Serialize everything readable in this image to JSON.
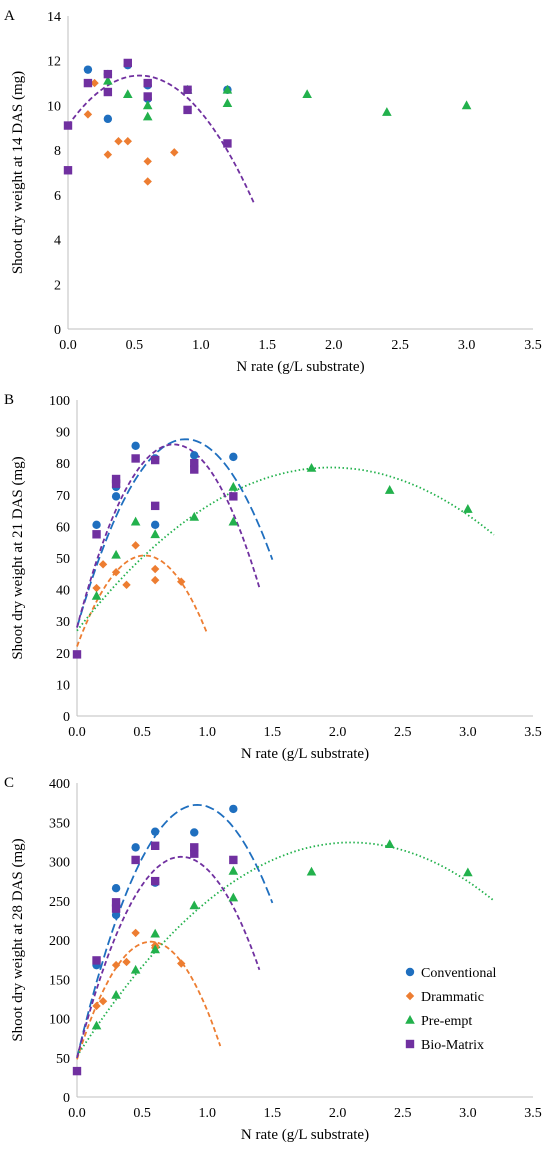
{
  "colors": {
    "Conventional": "#1f6fbf",
    "Drammatic": "#ed7d31",
    "Pre-empt": "#22b14c",
    "Bio-Matrix": "#7030a0",
    "axis": "#bfbfbf",
    "text": "#000000"
  },
  "chart_data": [
    {
      "panel": "A",
      "type": "scatter",
      "xlabel": "N rate (g/L substrate)",
      "ylabel": "Shoot dry weight at 14 DAS (mg)",
      "xlim": [
        0,
        3.5
      ],
      "ylim": [
        0,
        14
      ],
      "xticks": [
        "0.0",
        "0.5",
        "1.0",
        "1.5",
        "2.0",
        "2.5",
        "3.0",
        "3.5"
      ],
      "yticks": [
        "0",
        "2",
        "4",
        "6",
        "8",
        "10",
        "12",
        "14"
      ],
      "series": [
        {
          "name": "Conventional",
          "marker": "circle",
          "points": [
            [
              0.15,
              11.6
            ],
            [
              0.3,
              11.4
            ],
            [
              0.3,
              9.4
            ],
            [
              0.45,
              11.8
            ],
            [
              0.6,
              10.9
            ],
            [
              0.6,
              10.3
            ],
            [
              0.9,
              10.7
            ],
            [
              1.2,
              10.7
            ]
          ]
        },
        {
          "name": "Drammatic",
          "marker": "diamond",
          "points": [
            [
              0.15,
              9.6
            ],
            [
              0.2,
              11.0
            ],
            [
              0.3,
              7.8
            ],
            [
              0.38,
              8.4
            ],
            [
              0.45,
              8.4
            ],
            [
              0.6,
              7.5
            ],
            [
              0.6,
              6.6
            ],
            [
              0.8,
              7.9
            ]
          ]
        },
        {
          "name": "Pre-empt",
          "marker": "triangle",
          "points": [
            [
              0.3,
              11.1
            ],
            [
              0.45,
              10.5
            ],
            [
              0.6,
              10.0
            ],
            [
              0.6,
              9.5
            ],
            [
              0.9,
              10.7
            ],
            [
              1.2,
              10.1
            ],
            [
              1.2,
              10.7
            ],
            [
              1.8,
              10.5
            ],
            [
              2.4,
              9.7
            ],
            [
              3.0,
              10.0
            ]
          ]
        },
        {
          "name": "Bio-Matrix",
          "marker": "square",
          "points": [
            [
              0.0,
              9.1
            ],
            [
              0.0,
              7.1
            ],
            [
              0.15,
              11.0
            ],
            [
              0.3,
              11.4
            ],
            [
              0.3,
              10.6
            ],
            [
              0.45,
              11.9
            ],
            [
              0.6,
              11.0
            ],
            [
              0.6,
              10.4
            ],
            [
              0.9,
              9.8
            ],
            [
              0.9,
              10.7
            ],
            [
              1.2,
              8.3
            ]
          ]
        }
      ],
      "trendlines": [
        {
          "series": "Bio-Matrix",
          "style": "dashed",
          "coef": [
            9.1,
            8.3,
            -7.7
          ],
          "xrange": [
            0,
            1.4
          ]
        }
      ]
    },
    {
      "panel": "B",
      "type": "scatter",
      "xlabel": "N rate (g/L substrate)",
      "ylabel": "Shoot dry weight at 21 DAS (mg)",
      "xlim": [
        0,
        3.5
      ],
      "ylim": [
        0,
        100
      ],
      "xticks": [
        "0.0",
        "0.5",
        "1.0",
        "1.5",
        "2.0",
        "2.5",
        "3.0",
        "3.5"
      ],
      "yticks": [
        "0",
        "10",
        "20",
        "30",
        "40",
        "50",
        "60",
        "70",
        "80",
        "90",
        "100"
      ],
      "series": [
        {
          "name": "Conventional",
          "marker": "circle",
          "points": [
            [
              0.15,
              60.5
            ],
            [
              0.3,
              72.5
            ],
            [
              0.3,
              69.5
            ],
            [
              0.45,
              85.5
            ],
            [
              0.6,
              60.5
            ],
            [
              0.6,
              81.5
            ],
            [
              0.9,
              82.5
            ],
            [
              1.2,
              82.0
            ]
          ]
        },
        {
          "name": "Drammatic",
          "marker": "diamond",
          "points": [
            [
              0.15,
              40.5
            ],
            [
              0.2,
              48.0
            ],
            [
              0.3,
              45.5
            ],
            [
              0.38,
              41.5
            ],
            [
              0.45,
              54.0
            ],
            [
              0.6,
              46.5
            ],
            [
              0.6,
              43.0
            ],
            [
              0.8,
              42.5
            ]
          ]
        },
        {
          "name": "Pre-empt",
          "marker": "triangle",
          "points": [
            [
              0.15,
              38.0
            ],
            [
              0.3,
              51.0
            ],
            [
              0.45,
              61.5
            ],
            [
              0.6,
              57.5
            ],
            [
              0.9,
              63.0
            ],
            [
              1.2,
              61.5
            ],
            [
              1.2,
              72.5
            ],
            [
              1.8,
              78.5
            ],
            [
              2.4,
              71.5
            ],
            [
              3.0,
              65.5
            ]
          ]
        },
        {
          "name": "Bio-Matrix",
          "marker": "square",
          "points": [
            [
              0.0,
              19.5
            ],
            [
              0.15,
              57.5
            ],
            [
              0.3,
              75.0
            ],
            [
              0.3,
              73.5
            ],
            [
              0.45,
              81.5
            ],
            [
              0.6,
              81.0
            ],
            [
              0.6,
              66.5
            ],
            [
              0.9,
              80.0
            ],
            [
              0.9,
              78.0
            ],
            [
              1.2,
              69.5
            ]
          ]
        }
      ],
      "trendlines": [
        {
          "series": "Conventional",
          "style": "longdash",
          "coef": [
            28.0,
            143.0,
            -85.8
          ],
          "xrange": [
            0,
            1.5
          ]
        },
        {
          "series": "Drammatic",
          "style": "dashed",
          "coef": [
            22.0,
            111.0,
            -107.0
          ],
          "xrange": [
            0,
            1.0
          ]
        },
        {
          "series": "Pre-empt",
          "style": "dotted",
          "coef": [
            27.0,
            53.0,
            -13.6
          ],
          "xrange": [
            0,
            3.2
          ]
        },
        {
          "series": "Bio-Matrix",
          "style": "dashed",
          "coef": [
            28.0,
            156.0,
            -105.0
          ],
          "xrange": [
            0,
            1.4
          ]
        }
      ]
    },
    {
      "panel": "C",
      "type": "scatter",
      "xlabel": "N rate (g/L substrate)",
      "ylabel": "Shoot dry weight at 28 DAS (mg)",
      "xlim": [
        0,
        3.5
      ],
      "ylim": [
        0,
        400
      ],
      "xticks": [
        "0.0",
        "0.5",
        "1.0",
        "1.5",
        "2.0",
        "2.5",
        "3.0",
        "3.5"
      ],
      "yticks": [
        "0",
        "50",
        "100",
        "150",
        "200",
        "250",
        "300",
        "350",
        "400"
      ],
      "legend": {
        "placement": "right",
        "entries": [
          "Conventional",
          "Drammatic",
          "Pre-empt",
          "Bio-Matrix"
        ]
      },
      "series": [
        {
          "name": "Conventional",
          "marker": "circle",
          "points": [
            [
              0.15,
              168
            ],
            [
              0.3,
              266
            ],
            [
              0.3,
              232
            ],
            [
              0.45,
              318
            ],
            [
              0.6,
              338
            ],
            [
              0.6,
              273
            ],
            [
              0.9,
              337
            ],
            [
              1.2,
              367
            ]
          ]
        },
        {
          "name": "Drammatic",
          "marker": "diamond",
          "points": [
            [
              0.15,
              116
            ],
            [
              0.2,
              122
            ],
            [
              0.3,
              168
            ],
            [
              0.38,
              172
            ],
            [
              0.45,
              209
            ],
            [
              0.6,
              193
            ],
            [
              0.6,
              190
            ],
            [
              0.8,
              170
            ]
          ]
        },
        {
          "name": "Pre-empt",
          "marker": "triangle",
          "points": [
            [
              0.15,
              91
            ],
            [
              0.3,
              130
            ],
            [
              0.45,
              162
            ],
            [
              0.6,
              208
            ],
            [
              0.6,
              188
            ],
            [
              0.9,
              244
            ],
            [
              1.2,
              254
            ],
            [
              1.2,
              288
            ],
            [
              1.8,
              287
            ],
            [
              2.4,
              322
            ],
            [
              3.0,
              286
            ]
          ]
        },
        {
          "name": "Bio-Matrix",
          "marker": "square",
          "points": [
            [
              0.0,
              33
            ],
            [
              0.15,
              174
            ],
            [
              0.3,
              248
            ],
            [
              0.3,
              240
            ],
            [
              0.45,
              302
            ],
            [
              0.6,
              320
            ],
            [
              0.6,
              275
            ],
            [
              0.9,
              318
            ],
            [
              0.9,
              310
            ],
            [
              1.2,
              302
            ]
          ]
        }
      ],
      "trendlines": [
        {
          "series": "Conventional",
          "style": "longdash",
          "coef": [
            50,
            697,
            -377
          ],
          "xrange": [
            0,
            1.5
          ]
        },
        {
          "series": "Drammatic",
          "style": "dashed",
          "coef": [
            48,
            529,
            -467
          ],
          "xrange": [
            0,
            1.1
          ]
        },
        {
          "series": "Pre-empt",
          "style": "dotted",
          "coef": [
            52,
            259,
            -61.6
          ],
          "xrange": [
            0,
            3.2
          ]
        },
        {
          "series": "Bio-Matrix",
          "style": "dashed",
          "coef": [
            50,
            640,
            -400
          ],
          "xrange": [
            0,
            1.4
          ]
        }
      ]
    }
  ]
}
